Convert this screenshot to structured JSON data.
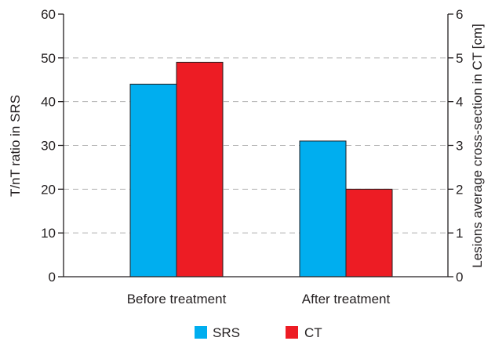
{
  "chart_data": {
    "type": "bar",
    "categories": [
      "Before treatment",
      "After treatment"
    ],
    "series": [
      {
        "name": "SRS",
        "values": [
          44,
          31
        ],
        "axis": "left",
        "color": "#00aeef"
      },
      {
        "name": "CT",
        "values": [
          4.9,
          2.0
        ],
        "axis": "right",
        "color": "#ed1c24"
      }
    ],
    "ylabel": "T/nT ratio in SRS",
    "ylabel_right": "Lesions average cross-section in CT [cm]",
    "ylim": [
      0,
      60
    ],
    "ylim_right": [
      0,
      6
    ],
    "yticks": [
      "0",
      "10",
      "20",
      "30",
      "40",
      "50",
      "60"
    ],
    "yticks_right": [
      "0",
      "1",
      "2",
      "3",
      "4",
      "5",
      "6"
    ],
    "grid": "dashed horizontal",
    "legend_position": "bottom"
  }
}
